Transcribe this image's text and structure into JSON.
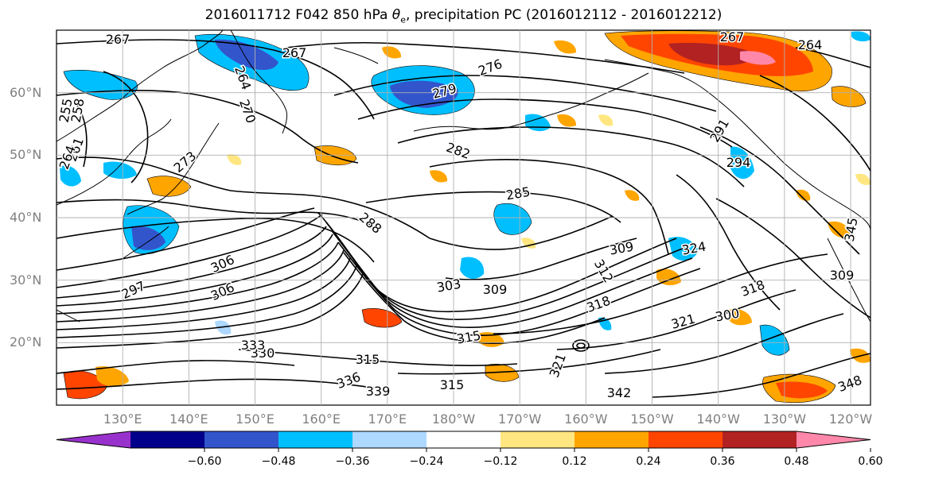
{
  "title": {
    "prefix": "2016011712 F042 850 hPa ",
    "theta": "θ",
    "theta_sub": "e",
    "suffix": ", precipitation PC (2016012112 - 2016012212)"
  },
  "axes": {
    "lat_labels": [
      "60°N",
      "50°N",
      "40°N",
      "30°N",
      "20°N"
    ],
    "lon_labels": [
      "130°E",
      "140°E",
      "150°E",
      "160°E",
      "170°E",
      "180°W",
      "170°W",
      "160°W",
      "150°W",
      "140°W",
      "130°W",
      "120°W"
    ],
    "lat_values": [
      60,
      50,
      40,
      30,
      20
    ],
    "lon_values": [
      130,
      140,
      150,
      160,
      170,
      180,
      190,
      200,
      210,
      220,
      230,
      240
    ],
    "lat_range": [
      10,
      70
    ],
    "lon_range": [
      120,
      243
    ]
  },
  "contour_labels": [
    "267",
    "267",
    "267",
    "264",
    "276",
    "279",
    "270",
    "264",
    "255",
    "258",
    "261",
    "264",
    "273",
    "282",
    "285",
    "288",
    "291",
    "294",
    "297",
    "300",
    "303",
    "306",
    "306",
    "309",
    "309",
    "309",
    "312",
    "315",
    "315",
    "315",
    "318",
    "318",
    "321",
    "321",
    "324",
    "330",
    "333",
    "336",
    "339",
    "342",
    "345",
    "348"
  ],
  "colorbar": {
    "colors": [
      "#9932cc",
      "#00008b",
      "#3355cc",
      "#00bfff",
      "#add8ff",
      "#ffffff",
      "#ffe680",
      "#ffa500",
      "#ff4500",
      "#b22222",
      "#ff88aa"
    ],
    "bounds": [
      -0.72,
      -0.6,
      -0.48,
      -0.36,
      -0.24,
      -0.12,
      0.12,
      0.24,
      0.36,
      0.48,
      0.6,
      0.72
    ],
    "tick_labels": [
      "−0.60",
      "−0.48",
      "−0.36",
      "−0.24",
      "−0.12",
      "0.12",
      "0.24",
      "0.36",
      "0.48",
      "0.60"
    ],
    "extend": "both"
  },
  "colors": {
    "contour": "#000000",
    "grid": "#b0b0b0",
    "coast": "#000000",
    "tick_label": "#808080"
  }
}
